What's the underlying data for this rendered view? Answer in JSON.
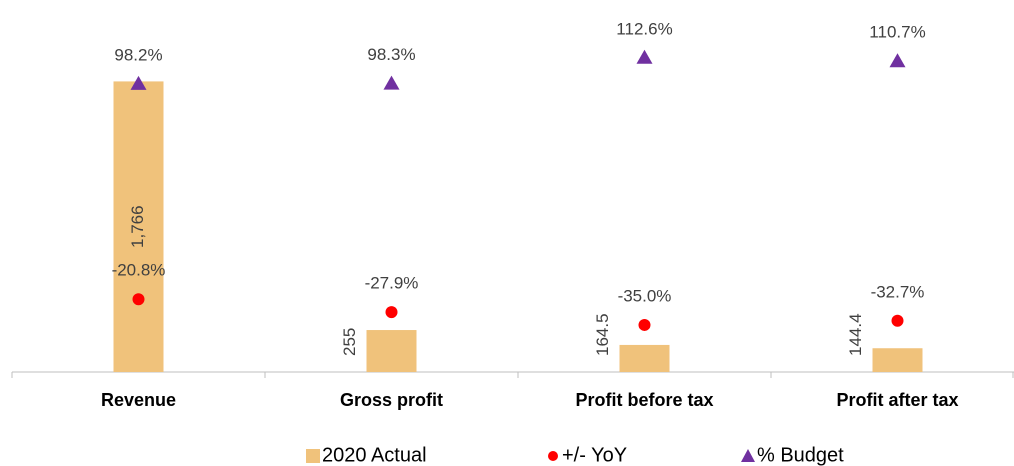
{
  "chart_data": {
    "type": "bar",
    "categories": [
      "Revenue",
      "Gross profit",
      "Profit before tax",
      "Profit after tax"
    ],
    "series": [
      {
        "name": "2020 Actual",
        "type": "bar",
        "color": "#f0c27b",
        "values": [
          1766,
          255,
          164.5,
          144.4
        ],
        "value_labels": [
          "1,766",
          "255",
          "164.5",
          "144.4"
        ]
      },
      {
        "name": "+/- YoY",
        "type": "scatter",
        "marker": "circle",
        "axis": "y2",
        "color": "#ff0000",
        "values": [
          -20.8,
          -27.9,
          -35.0,
          -32.7
        ],
        "value_labels": [
          "-20.8%",
          "-27.9%",
          "-35.0%",
          "-32.7%"
        ]
      },
      {
        "name": "% Budget",
        "type": "scatter",
        "marker": "triangle",
        "axis": "y2",
        "color": "#7030a0",
        "values": [
          98.2,
          98.3,
          112.6,
          110.7
        ],
        "value_labels": [
          "98.2%",
          "98.3%",
          "112.6%",
          "110.7%"
        ]
      }
    ],
    "ylim": [
      0,
      2200
    ],
    "y2lim": [
      -61,
      139
    ],
    "legend": "bottom"
  }
}
